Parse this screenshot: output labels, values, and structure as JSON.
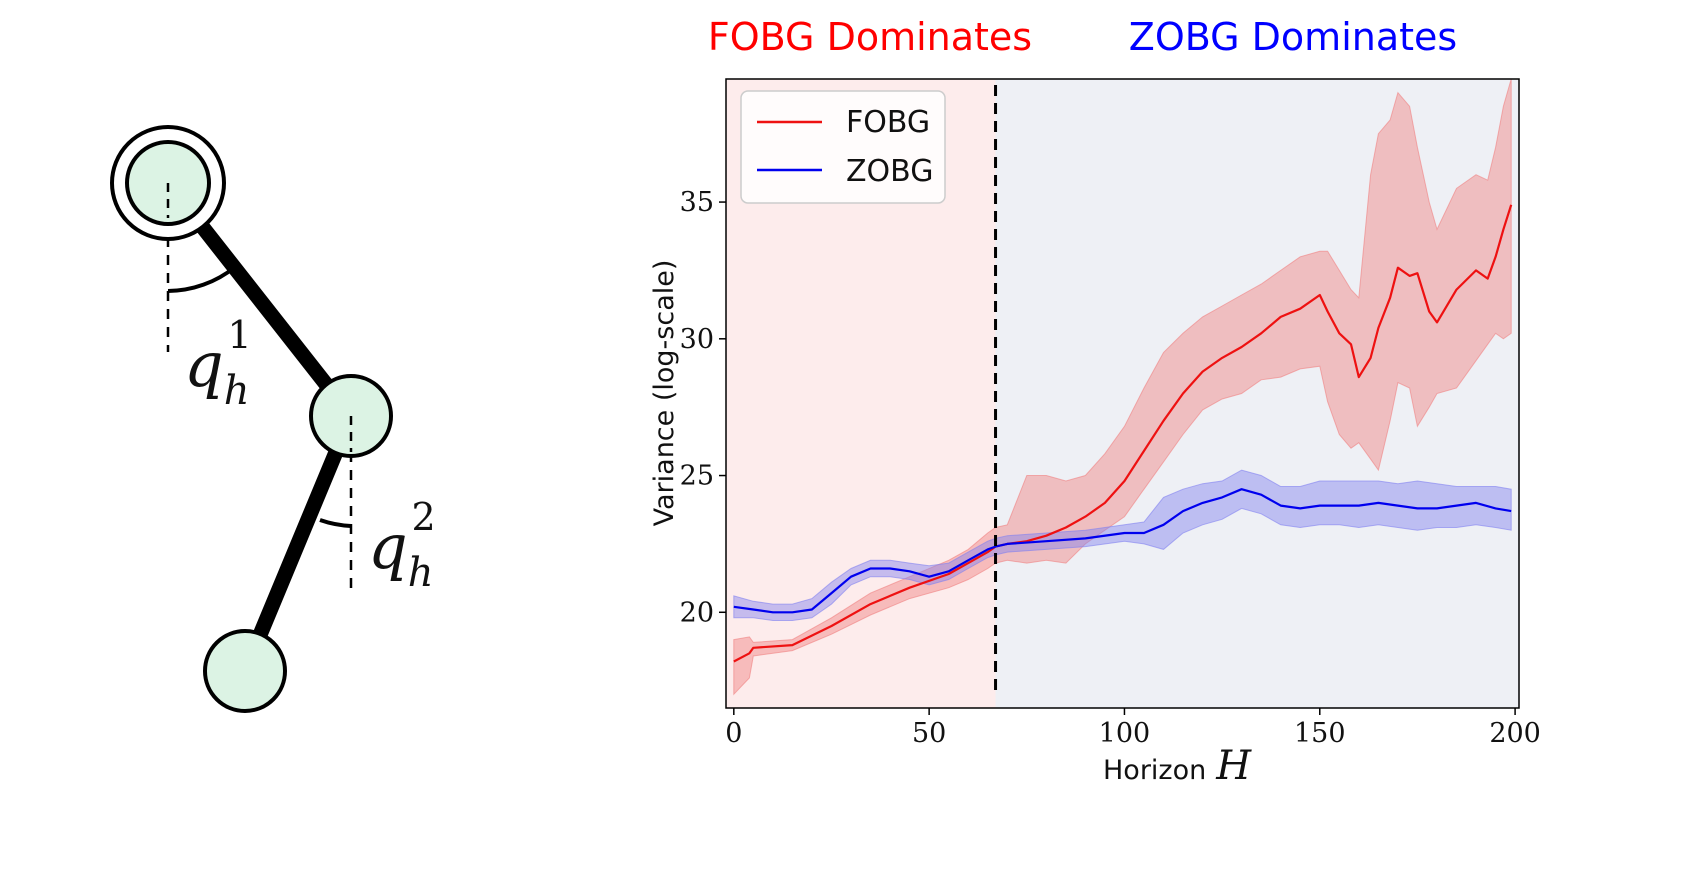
{
  "pendulum": {
    "angle_labels": [
      {
        "symbol": "q",
        "sub": "h",
        "sup": "1"
      },
      {
        "symbol": "q",
        "sub": "h",
        "sup": "2"
      }
    ]
  },
  "chart_data": {
    "type": "line",
    "xlabel": "Horizon",
    "xlabel_math": "H",
    "ylabel": "Variance (log-scale)",
    "xlim": [
      -2,
      201
    ],
    "ylim": [
      16.5,
      39.5
    ],
    "xticks": [
      0,
      50,
      100,
      150,
      200
    ],
    "yticks": [
      20,
      25,
      30,
      35
    ],
    "grid": false,
    "legend_position": "top-left",
    "regions": [
      {
        "label": "FOBG Dominates",
        "x_range": [
          -2,
          67
        ],
        "color": "#fdecec",
        "label_color": "#ff0000"
      },
      {
        "label": "ZOBG Dominates",
        "x_range": [
          67,
          201
        ],
        "color": "#eef0f5",
        "label_color": "#0000ff"
      }
    ],
    "threshold_x": 67,
    "series": [
      {
        "name": "FOBG",
        "color": "#ee1111",
        "band_color": "#f08080",
        "x": [
          0,
          4,
          5,
          15,
          25,
          35,
          45,
          55,
          60,
          65,
          67,
          70,
          75,
          80,
          85,
          90,
          95,
          100,
          105,
          110,
          115,
          120,
          125,
          130,
          135,
          140,
          145,
          150,
          152,
          155,
          158,
          160,
          163,
          165,
          168,
          170,
          173,
          175,
          178,
          180,
          185,
          190,
          193,
          195,
          197,
          199
        ],
        "mean": [
          18.2,
          18.5,
          18.7,
          18.8,
          19.5,
          20.3,
          20.9,
          21.4,
          21.8,
          22.2,
          22.4,
          22.5,
          22.6,
          22.8,
          23.1,
          23.5,
          24.0,
          24.8,
          25.9,
          27.0,
          28.0,
          28.8,
          29.3,
          29.7,
          30.2,
          30.8,
          31.1,
          31.6,
          31.0,
          30.2,
          29.8,
          28.6,
          29.3,
          30.4,
          31.5,
          32.6,
          32.3,
          32.4,
          31.0,
          30.6,
          31.8,
          32.5,
          32.2,
          33.0,
          34.0,
          34.9
        ],
        "upper": [
          19.0,
          19.1,
          18.9,
          19.0,
          19.8,
          20.7,
          21.3,
          21.9,
          22.3,
          22.9,
          23.1,
          23.2,
          25.0,
          25.0,
          24.8,
          25.0,
          25.8,
          26.8,
          28.2,
          29.5,
          30.2,
          30.8,
          31.2,
          31.6,
          32.0,
          32.5,
          33.0,
          33.2,
          33.2,
          32.5,
          31.8,
          31.5,
          36.0,
          37.5,
          38.0,
          39.0,
          38.5,
          37.0,
          35.0,
          34.0,
          35.5,
          36.0,
          35.8,
          37.0,
          38.5,
          39.5
        ],
        "lower": [
          17.0,
          17.6,
          18.4,
          18.6,
          19.2,
          19.9,
          20.5,
          20.9,
          21.2,
          21.6,
          21.8,
          21.9,
          21.8,
          21.9,
          21.8,
          22.5,
          23.0,
          23.5,
          24.5,
          25.5,
          26.5,
          27.4,
          27.8,
          28.0,
          28.5,
          28.6,
          28.9,
          29.0,
          27.7,
          26.5,
          26.0,
          26.2,
          25.6,
          25.2,
          27.0,
          28.4,
          28.2,
          26.8,
          27.5,
          28.0,
          28.2,
          29.2,
          29.8,
          30.2,
          30.0,
          30.2
        ]
      },
      {
        "name": "ZOBG",
        "color": "#0000ee",
        "band_color": "#8080f0",
        "x": [
          0,
          5,
          10,
          15,
          20,
          25,
          30,
          35,
          40,
          45,
          50,
          55,
          60,
          65,
          67,
          70,
          80,
          90,
          100,
          105,
          110,
          115,
          120,
          125,
          130,
          135,
          140,
          145,
          150,
          155,
          160,
          165,
          170,
          175,
          180,
          185,
          190,
          195,
          199
        ],
        "mean": [
          20.2,
          20.1,
          20.0,
          20.0,
          20.1,
          20.7,
          21.3,
          21.6,
          21.6,
          21.5,
          21.3,
          21.5,
          21.9,
          22.3,
          22.4,
          22.5,
          22.6,
          22.7,
          22.9,
          22.9,
          23.2,
          23.7,
          24.0,
          24.2,
          24.5,
          24.3,
          23.9,
          23.8,
          23.9,
          23.9,
          23.9,
          24.0,
          23.9,
          23.8,
          23.8,
          23.9,
          24.0,
          23.8,
          23.7
        ],
        "upper": [
          20.6,
          20.4,
          20.3,
          20.3,
          20.5,
          21.1,
          21.6,
          21.9,
          21.9,
          21.8,
          21.7,
          21.8,
          22.2,
          22.6,
          22.7,
          22.8,
          22.9,
          23.0,
          23.2,
          23.3,
          24.2,
          24.5,
          24.7,
          24.8,
          25.2,
          25.0,
          24.6,
          24.6,
          24.8,
          24.8,
          24.8,
          24.8,
          24.7,
          24.8,
          24.7,
          24.6,
          24.6,
          24.6,
          24.5
        ],
        "lower": [
          19.8,
          19.8,
          19.7,
          19.7,
          19.8,
          20.3,
          21.0,
          21.3,
          21.3,
          21.2,
          21.0,
          21.2,
          21.6,
          22.0,
          22.1,
          22.2,
          22.3,
          22.4,
          22.6,
          22.5,
          22.3,
          22.9,
          23.2,
          23.4,
          23.8,
          23.6,
          23.2,
          23.1,
          23.2,
          23.2,
          23.1,
          23.2,
          23.1,
          23.0,
          23.1,
          23.1,
          23.2,
          23.1,
          23.0
        ]
      }
    ]
  }
}
